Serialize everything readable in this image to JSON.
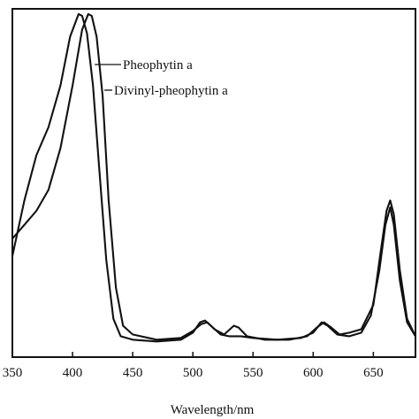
{
  "chart_data": {
    "type": "line",
    "title": "",
    "xlabel": "Wavelength/nm",
    "ylabel": "",
    "xlim": [
      350,
      685
    ],
    "ylim": [
      0,
      1
    ],
    "x_ticks": [
      350,
      400,
      450,
      500,
      550,
      600,
      650
    ],
    "grid": false,
    "series": [
      {
        "name": "Pheophytin a",
        "points": [
          [
            350,
            0.29
          ],
          [
            360,
            0.45
          ],
          [
            370,
            0.58
          ],
          [
            380,
            0.66
          ],
          [
            390,
            0.78
          ],
          [
            398,
            0.92
          ],
          [
            405,
            0.985
          ],
          [
            408,
            0.98
          ],
          [
            412,
            0.93
          ],
          [
            417,
            0.78
          ],
          [
            422,
            0.55
          ],
          [
            428,
            0.28
          ],
          [
            434,
            0.11
          ],
          [
            440,
            0.06
          ],
          [
            450,
            0.05
          ],
          [
            470,
            0.045
          ],
          [
            490,
            0.05
          ],
          [
            500,
            0.07
          ],
          [
            506,
            0.1
          ],
          [
            510,
            0.105
          ],
          [
            515,
            0.09
          ],
          [
            523,
            0.065
          ],
          [
            530,
            0.06
          ],
          [
            540,
            0.06
          ],
          [
            550,
            0.055
          ],
          [
            570,
            0.05
          ],
          [
            590,
            0.055
          ],
          [
            600,
            0.07
          ],
          [
            607,
            0.1
          ],
          [
            612,
            0.09
          ],
          [
            620,
            0.065
          ],
          [
            630,
            0.06
          ],
          [
            640,
            0.07
          ],
          [
            648,
            0.12
          ],
          [
            655,
            0.25
          ],
          [
            660,
            0.38
          ],
          [
            664,
            0.43
          ],
          [
            667,
            0.38
          ],
          [
            672,
            0.22
          ],
          [
            678,
            0.1
          ],
          [
            685,
            0.06
          ]
        ]
      },
      {
        "name": "Divinyl-pheophytin a",
        "points": [
          [
            350,
            0.34
          ],
          [
            360,
            0.38
          ],
          [
            370,
            0.42
          ],
          [
            380,
            0.48
          ],
          [
            390,
            0.6
          ],
          [
            400,
            0.78
          ],
          [
            408,
            0.94
          ],
          [
            413,
            0.985
          ],
          [
            416,
            0.98
          ],
          [
            420,
            0.92
          ],
          [
            425,
            0.75
          ],
          [
            430,
            0.45
          ],
          [
            436,
            0.2
          ],
          [
            442,
            0.09
          ],
          [
            450,
            0.065
          ],
          [
            470,
            0.05
          ],
          [
            490,
            0.055
          ],
          [
            500,
            0.075
          ],
          [
            507,
            0.095
          ],
          [
            512,
            0.1
          ],
          [
            518,
            0.08
          ],
          [
            526,
            0.065
          ],
          [
            534,
            0.09
          ],
          [
            538,
            0.085
          ],
          [
            545,
            0.06
          ],
          [
            560,
            0.05
          ],
          [
            580,
            0.05
          ],
          [
            595,
            0.06
          ],
          [
            603,
            0.085
          ],
          [
            609,
            0.1
          ],
          [
            615,
            0.085
          ],
          [
            622,
            0.065
          ],
          [
            630,
            0.07
          ],
          [
            640,
            0.08
          ],
          [
            650,
            0.15
          ],
          [
            656,
            0.3
          ],
          [
            661,
            0.42
          ],
          [
            664,
            0.45
          ],
          [
            667,
            0.41
          ],
          [
            672,
            0.25
          ],
          [
            678,
            0.11
          ],
          [
            685,
            0.06
          ]
        ]
      }
    ],
    "annotations": [
      {
        "text": "Pheophytin a",
        "series": 0
      },
      {
        "text": "Divinyl-pheophytin a",
        "series": 1
      }
    ]
  }
}
